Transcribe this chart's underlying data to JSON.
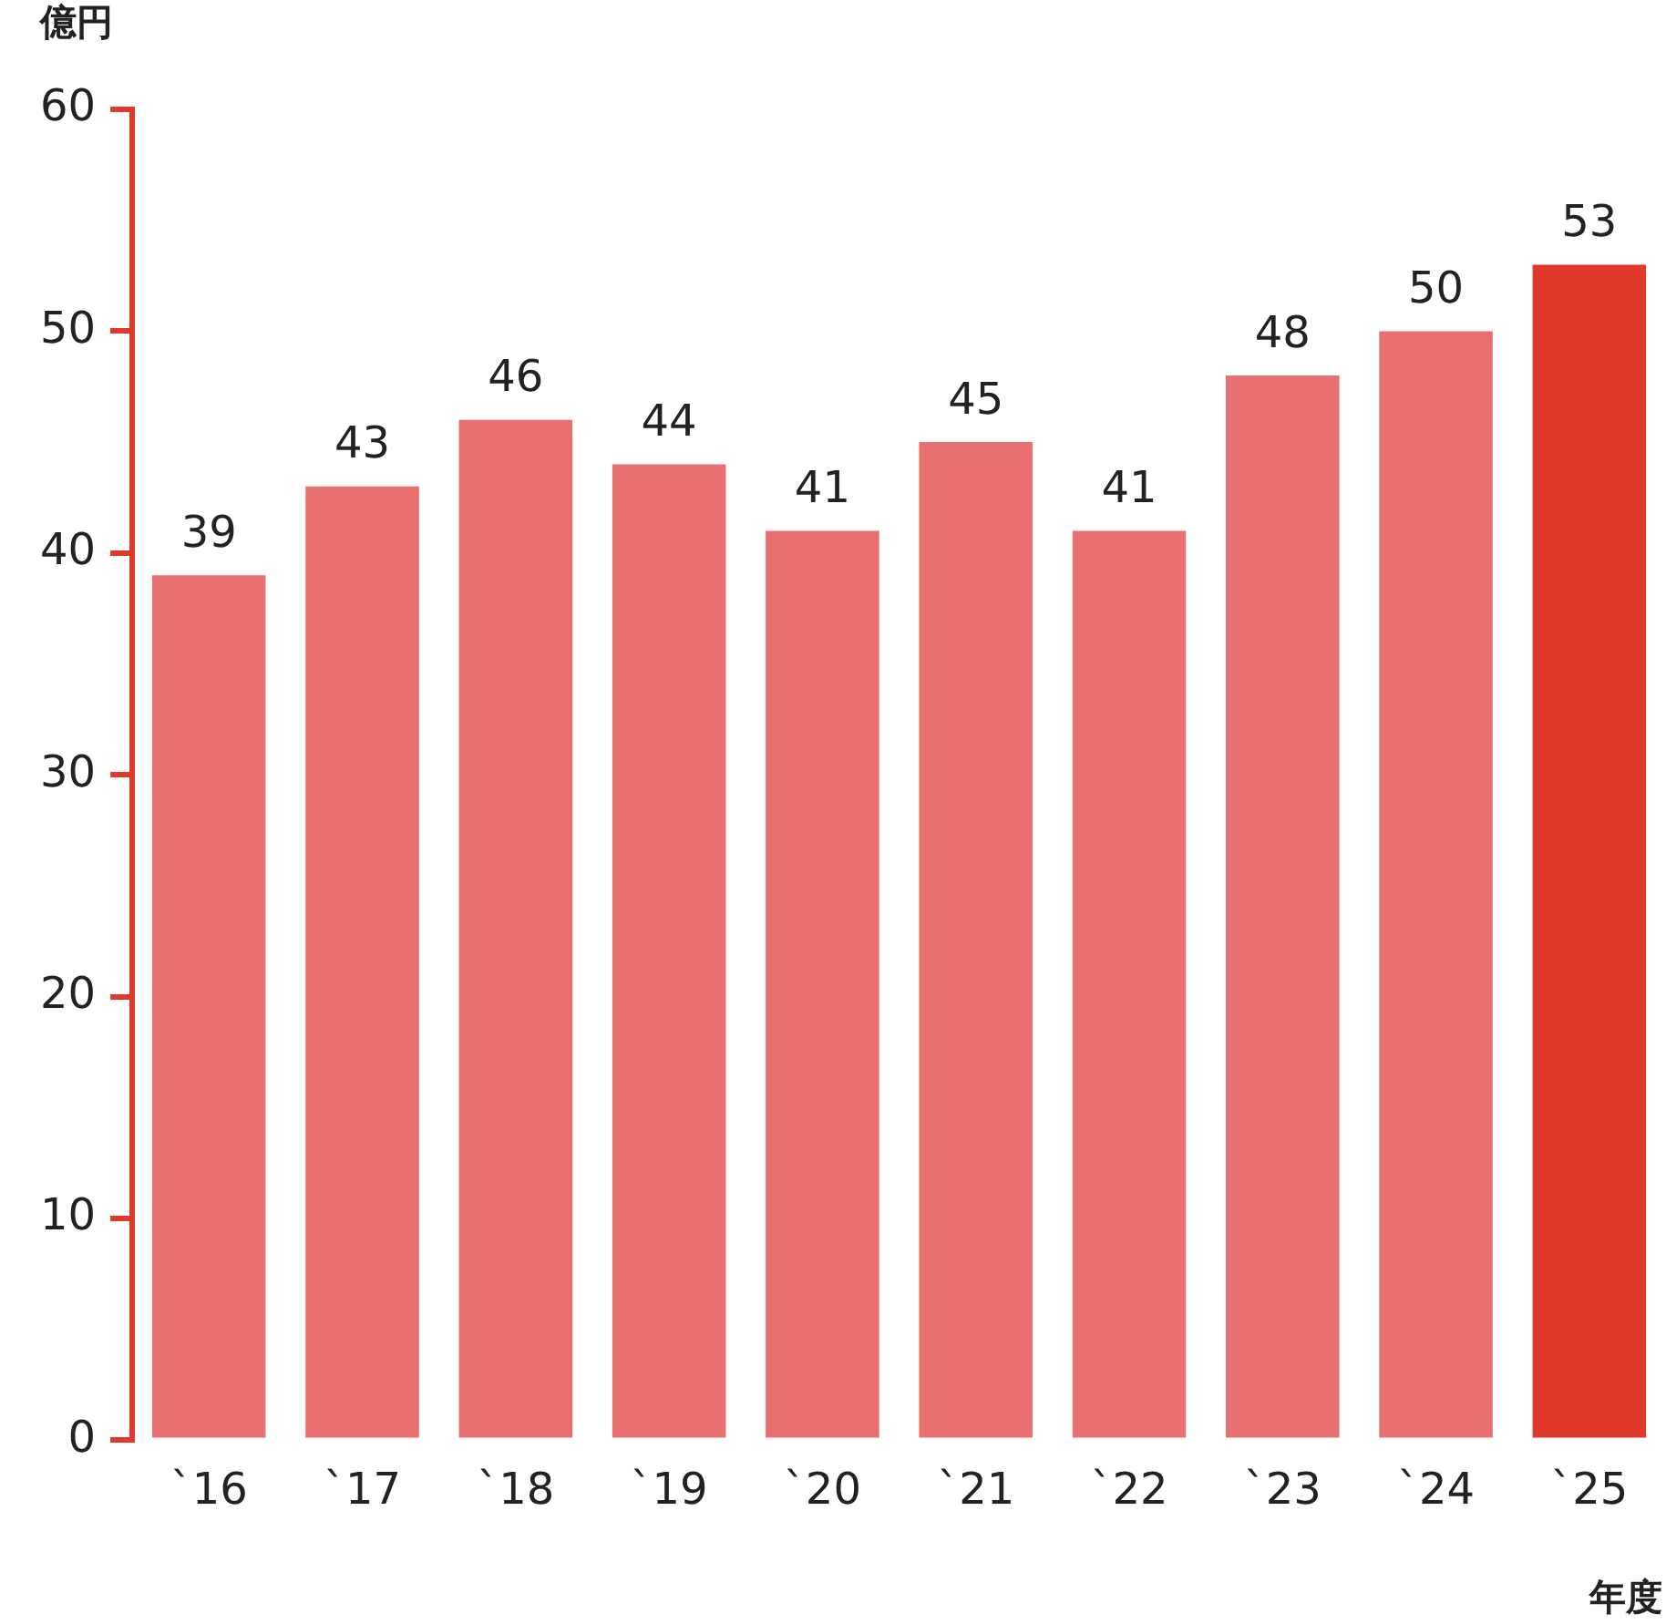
{
  "chart_data": {
    "type": "bar",
    "ylabel": "億円",
    "xlabel": "年度",
    "categories": [
      "`16",
      "`17",
      "`18",
      "`19",
      "`20",
      "`21",
      "`22",
      "`23",
      "`24",
      "`25"
    ],
    "values": [
      39,
      43,
      46,
      44,
      41,
      45,
      41,
      48,
      50,
      53
    ],
    "colors": [
      "#e87070",
      "#e87070",
      "#e87070",
      "#e87070",
      "#e87070",
      "#e87070",
      "#e87070",
      "#e87070",
      "#e87070",
      "#e0392b"
    ],
    "ylim": [
      0,
      60
    ],
    "yticks": [
      0,
      10,
      20,
      30,
      40,
      50,
      60
    ],
    "grid": false,
    "legend": false,
    "data_labels": true
  }
}
